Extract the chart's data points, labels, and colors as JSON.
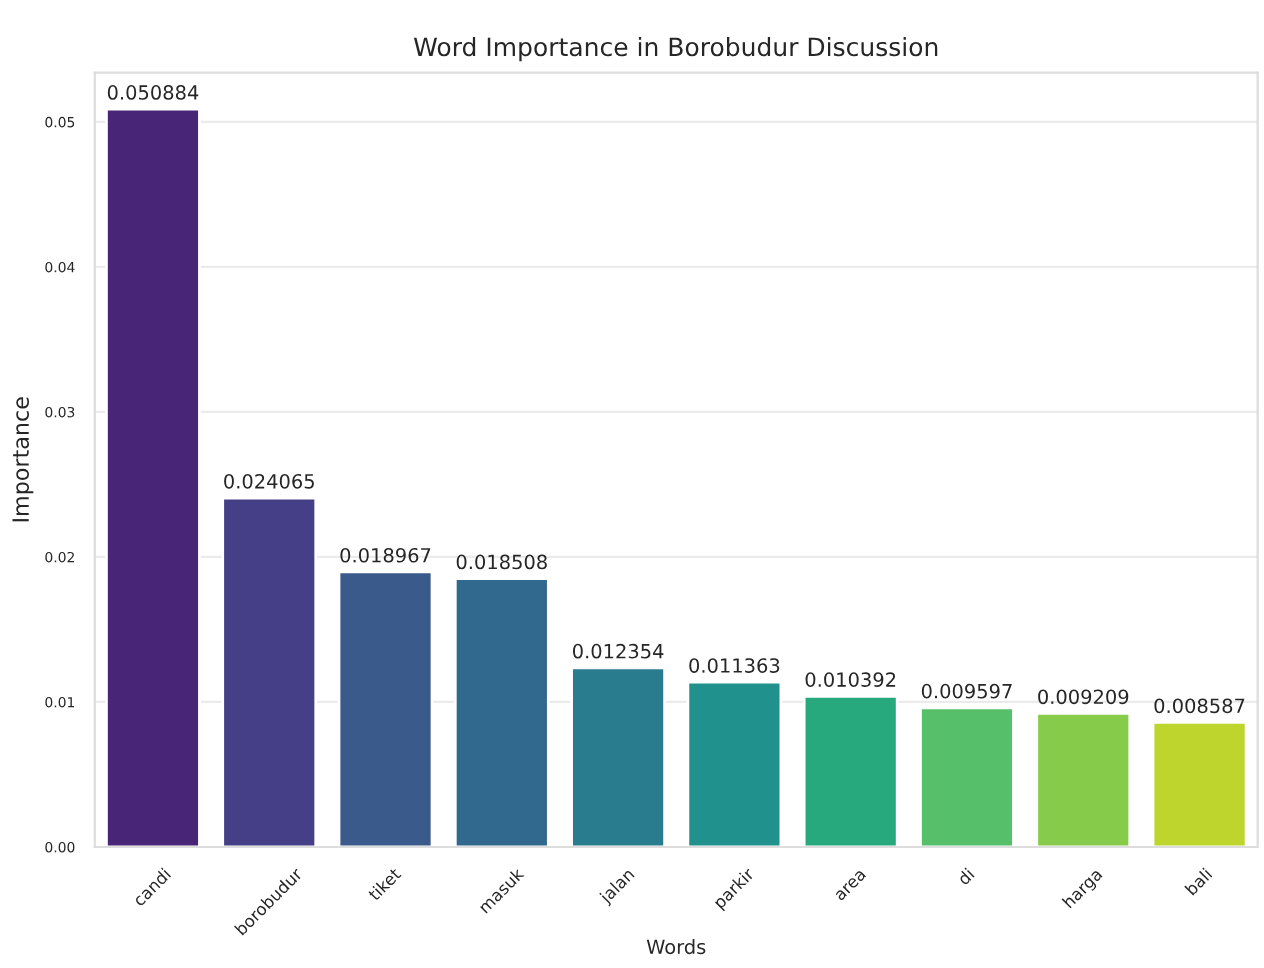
{
  "chart_data": {
    "type": "bar",
    "title": "Word Importance in Borobudur Discussion",
    "xlabel": "Words",
    "ylabel": "Importance",
    "categories": [
      "candi",
      "borobudur",
      "tiket",
      "masuk",
      "jalan",
      "parkir",
      "area",
      "di",
      "harga",
      "bali"
    ],
    "values": [
      0.050884,
      0.024065,
      0.018967,
      0.018508,
      0.012354,
      0.011363,
      0.010392,
      0.009597,
      0.009209,
      0.008587
    ],
    "colors": [
      "#482576",
      "#443f86",
      "#3b5a8c",
      "#31688e",
      "#297b8e",
      "#20918c",
      "#28a87d",
      "#55bf6a",
      "#87cb4b",
      "#bdd52c"
    ],
    "ylim": [
      0,
      0.0534
    ],
    "yticks": [
      {
        "value": 0,
        "label": "0.00"
      },
      {
        "value": 0.01,
        "label": "0.01"
      },
      {
        "value": 0.02,
        "label": "0.02"
      },
      {
        "value": 0.03,
        "label": "0.03"
      },
      {
        "value": 0.04,
        "label": "0.04"
      },
      {
        "value": 0.05,
        "label": "0.05"
      }
    ],
    "grid": "y",
    "data_labels": true
  }
}
